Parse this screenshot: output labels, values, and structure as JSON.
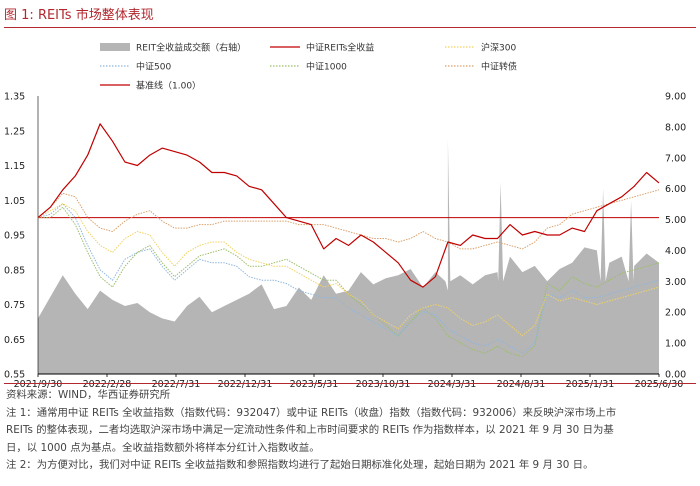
{
  "header": {
    "figure_no": "图 1:",
    "title": "REITs 市场整体表现"
  },
  "colors": {
    "accent": "#b2282e",
    "volume": "#b5b5b5",
    "reits": "#c00000",
    "hs300": "#f0d264",
    "zz500": "#8fb6dd",
    "zz1000": "#9dbd6a",
    "zzzz": "#d9a06c",
    "baseline": "#c00000"
  },
  "chart_data": {
    "type": "line",
    "title": "REITs 市场整体表现",
    "legend": [
      {
        "key": "volume",
        "label": "REIT全收益成交额（右轴）",
        "style": "area"
      },
      {
        "key": "reits",
        "label": "中证REITs全收益",
        "style": "line"
      },
      {
        "key": "hs300",
        "label": "沪深300",
        "style": "dotted"
      },
      {
        "key": "zz500",
        "label": "中证500",
        "style": "dotted"
      },
      {
        "key": "zz1000",
        "label": "中证1000",
        "style": "dotted"
      },
      {
        "key": "zzzz",
        "label": "中证转债",
        "style": "dotted"
      },
      {
        "key": "baseline",
        "label": "基准线（1.00）",
        "style": "line"
      }
    ],
    "x_labels": [
      "2021/9/30",
      "2022/2/28",
      "2022/7/31",
      "2022/12/31",
      "2023/5/31",
      "2023/10/31",
      "2024/3/31",
      "2024/8/31",
      "2025/1/31",
      "2025/6/30"
    ],
    "y_left": {
      "min": 0.55,
      "max": 1.35,
      "ticks": [
        "0.55",
        "0.65",
        "0.75",
        "0.85",
        "0.95",
        "1.05",
        "1.15",
        "1.25",
        "1.35"
      ]
    },
    "y_right": {
      "min": 0,
      "max": 9,
      "ticks": [
        "0.00",
        "1.00",
        "2.00",
        "3.00",
        "4.00",
        "5.00",
        "6.00",
        "7.00",
        "8.00",
        "9.00"
      ]
    },
    "series": [
      {
        "key": "reits",
        "values": [
          1.0,
          1.03,
          1.08,
          1.12,
          1.18,
          1.27,
          1.22,
          1.16,
          1.15,
          1.18,
          1.2,
          1.19,
          1.18,
          1.16,
          1.13,
          1.13,
          1.12,
          1.09,
          1.08,
          1.04,
          1.0,
          0.99,
          0.98,
          0.91,
          0.94,
          0.92,
          0.95,
          0.93,
          0.9,
          0.87,
          0.82,
          0.8,
          0.83,
          0.93,
          0.92,
          0.95,
          0.94,
          0.94,
          0.98,
          0.95,
          0.96,
          0.95,
          0.95,
          0.97,
          0.96,
          1.02,
          1.04,
          1.06,
          1.09,
          1.13,
          1.1
        ]
      },
      {
        "key": "hs300",
        "values": [
          1.0,
          1.02,
          1.04,
          1.02,
          0.96,
          0.92,
          0.9,
          0.94,
          0.96,
          0.95,
          0.9,
          0.86,
          0.9,
          0.92,
          0.93,
          0.93,
          0.9,
          0.88,
          0.87,
          0.86,
          0.86,
          0.84,
          0.82,
          0.8,
          0.81,
          0.78,
          0.76,
          0.72,
          0.7,
          0.68,
          0.72,
          0.74,
          0.75,
          0.74,
          0.71,
          0.69,
          0.7,
          0.72,
          0.69,
          0.66,
          0.69,
          0.78,
          0.76,
          0.77,
          0.76,
          0.75,
          0.76,
          0.77,
          0.78,
          0.79,
          0.8
        ]
      },
      {
        "key": "zz500",
        "values": [
          1.0,
          1.01,
          1.04,
          1.0,
          0.92,
          0.85,
          0.82,
          0.88,
          0.9,
          0.91,
          0.86,
          0.82,
          0.85,
          0.88,
          0.87,
          0.87,
          0.86,
          0.83,
          0.82,
          0.82,
          0.81,
          0.79,
          0.78,
          0.77,
          0.77,
          0.74,
          0.72,
          0.7,
          0.68,
          0.66,
          0.7,
          0.73,
          0.72,
          0.68,
          0.66,
          0.64,
          0.63,
          0.65,
          0.63,
          0.61,
          0.64,
          0.78,
          0.77,
          0.79,
          0.77,
          0.77,
          0.78,
          0.79,
          0.8,
          0.81,
          0.82
        ]
      },
      {
        "key": "zz1000",
        "values": [
          1.0,
          1.0,
          1.03,
          0.98,
          0.9,
          0.83,
          0.8,
          0.86,
          0.9,
          0.92,
          0.87,
          0.83,
          0.86,
          0.89,
          0.9,
          0.91,
          0.89,
          0.86,
          0.86,
          0.87,
          0.88,
          0.86,
          0.84,
          0.82,
          0.82,
          0.78,
          0.75,
          0.72,
          0.69,
          0.66,
          0.7,
          0.74,
          0.71,
          0.66,
          0.64,
          0.62,
          0.61,
          0.63,
          0.61,
          0.6,
          0.63,
          0.81,
          0.79,
          0.83,
          0.81,
          0.8,
          0.82,
          0.84,
          0.85,
          0.86,
          0.87
        ]
      },
      {
        "key": "zzzz",
        "values": [
          1.0,
          1.03,
          1.07,
          1.06,
          1.0,
          0.97,
          0.96,
          0.99,
          1.01,
          1.02,
          0.99,
          0.97,
          0.97,
          0.98,
          0.98,
          0.99,
          0.99,
          0.99,
          0.99,
          0.99,
          0.99,
          0.98,
          0.98,
          0.98,
          0.97,
          0.96,
          0.95,
          0.94,
          0.94,
          0.93,
          0.94,
          0.96,
          0.94,
          0.93,
          0.91,
          0.91,
          0.92,
          0.93,
          0.92,
          0.91,
          0.93,
          0.97,
          0.98,
          1.01,
          1.02,
          1.03,
          1.04,
          1.05,
          1.06,
          1.07,
          1.08
        ]
      }
    ],
    "volume": [
      1.8,
      2.5,
      3.2,
      2.6,
      2.1,
      2.7,
      2.4,
      2.2,
      2.3,
      2.0,
      1.8,
      1.7,
      2.2,
      2.5,
      2.0,
      2.2,
      2.4,
      2.6,
      2.9,
      2.1,
      2.2,
      2.8,
      2.4,
      3.2,
      2.6,
      2.7,
      3.3,
      2.9,
      3.1,
      3.2,
      3.4,
      2.8,
      3.3,
      2.7,
      3.2,
      2.9,
      3.2,
      3.3,
      3.8,
      3.3,
      3.5,
      3.0,
      3.4,
      3.6,
      4.1,
      4.0,
      3.6,
      3.8,
      3.5,
      3.9,
      3.6
    ],
    "volume_spikes": [
      {
        "at": 0.66,
        "value": 7.6
      },
      {
        "at": 0.745,
        "value": 6.2
      },
      {
        "at": 0.91,
        "value": 6.0
      },
      {
        "at": 0.955,
        "value": 5.6
      }
    ],
    "baseline": 1.0
  },
  "notes": [
    "资料来源：WIND，华西证券研究所",
    "注 1：通常用中证 REITs 全收益指数（指数代码：932047）或中证 REITs（收盘）指数（指数代码：932006）来反映沪深市场上市",
    "REITs 的整体表现，二者均选取沪深市场中满足一定流动性条件和上市时间要求的 REITs 作为指数样本，以 2021 年 9 月 30 日为基",
    "日，以 1000 点为基点。全收益指数额外将样本分红计入指数收益。",
    "注 2：为方便对比，我们对中证 REITs 全收益指数和参照指数均进行了起始日期标准化处理，起始日期为 2021 年 9 月 30 日。"
  ]
}
